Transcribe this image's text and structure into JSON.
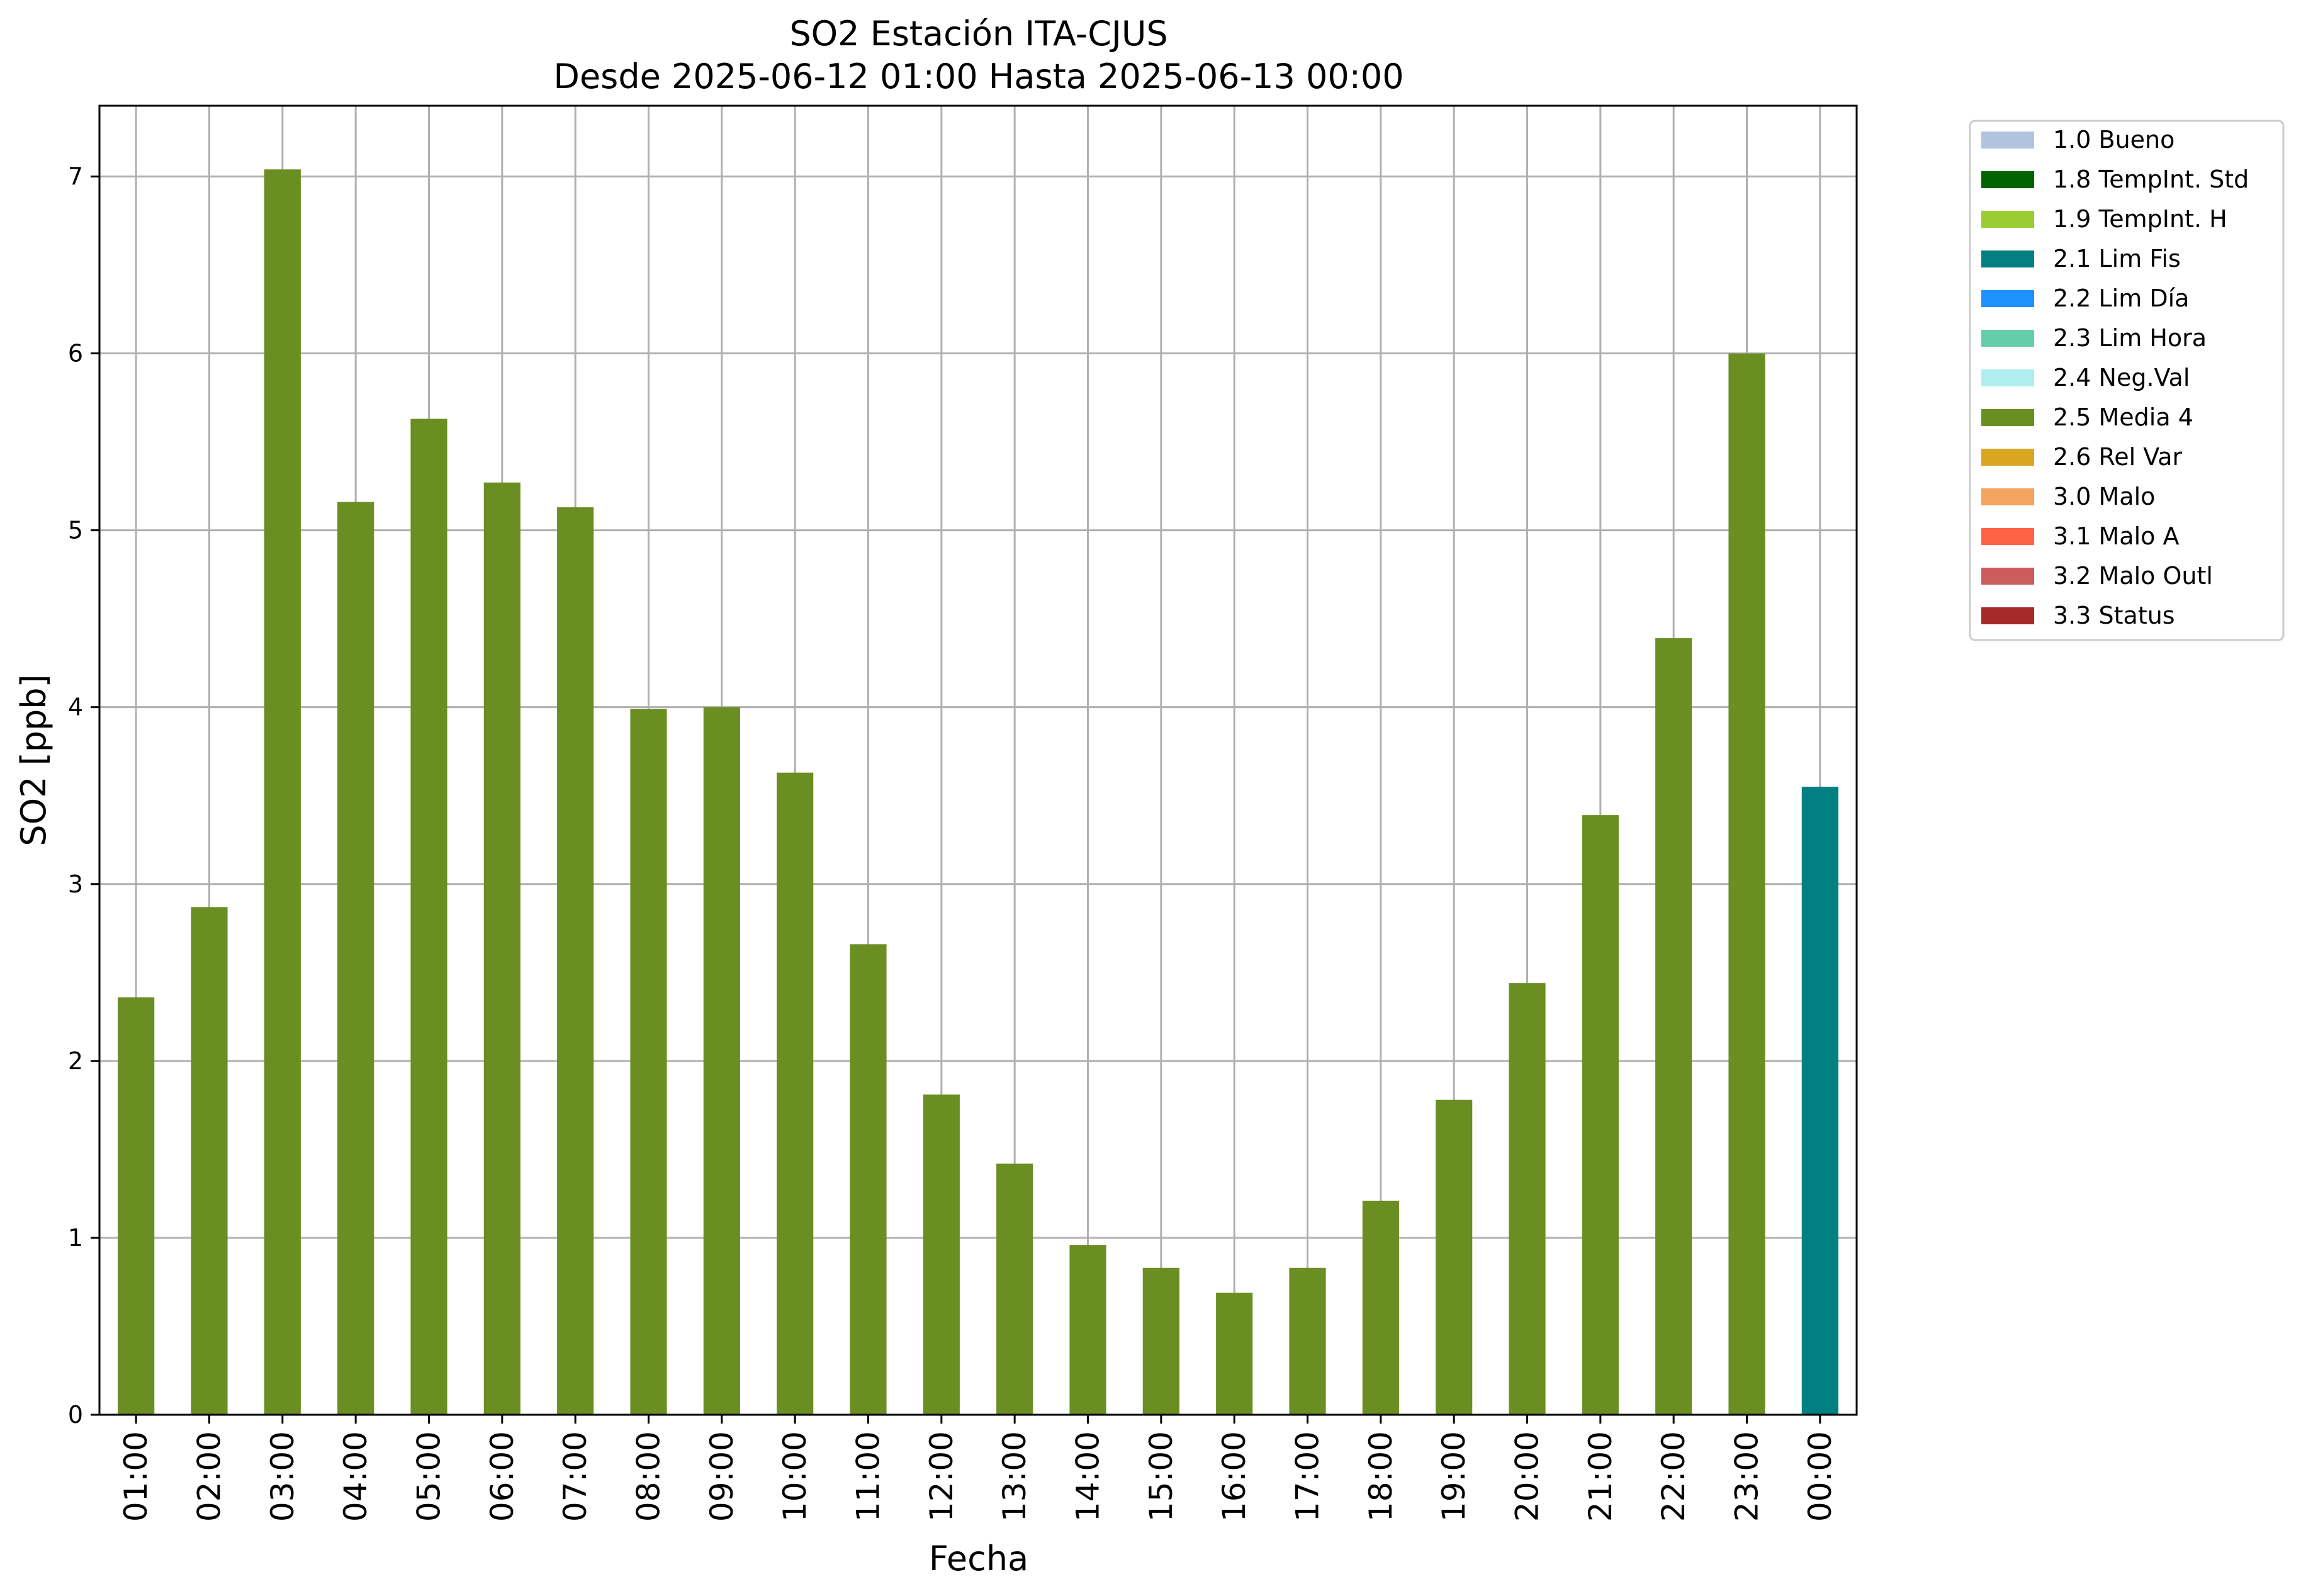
{
  "chart_data": {
    "type": "bar",
    "title": "SO2 Estación ITA-CJUS",
    "subtitle": "Desde 2025-06-12 01:00 Hasta 2025-06-13 00:00",
    "xlabel": "Fecha",
    "ylabel": "SO2 [ppb]",
    "ylim": [
      0,
      7.4
    ],
    "yticks": [
      0,
      1,
      2,
      3,
      4,
      5,
      6,
      7
    ],
    "grid": true,
    "legend_position": "outside-top-right",
    "categories": [
      "01:00",
      "02:00",
      "03:00",
      "04:00",
      "05:00",
      "06:00",
      "07:00",
      "08:00",
      "09:00",
      "10:00",
      "11:00",
      "12:00",
      "13:00",
      "14:00",
      "15:00",
      "16:00",
      "17:00",
      "18:00",
      "19:00",
      "20:00",
      "21:00",
      "22:00",
      "23:00",
      "00:00"
    ],
    "values": [
      2.36,
      2.87,
      7.04,
      5.16,
      5.63,
      5.27,
      5.13,
      3.99,
      4.0,
      3.63,
      2.66,
      1.81,
      1.42,
      0.96,
      0.83,
      0.69,
      0.83,
      1.21,
      1.78,
      2.44,
      3.39,
      4.39,
      6.0,
      3.55
    ],
    "bar_flags": [
      "2.5 Media 4",
      "2.5 Media 4",
      "2.5 Media 4",
      "2.5 Media 4",
      "2.5 Media 4",
      "2.5 Media 4",
      "2.5 Media 4",
      "2.5 Media 4",
      "2.5 Media 4",
      "2.5 Media 4",
      "2.5 Media 4",
      "2.5 Media 4",
      "2.5 Media 4",
      "2.5 Media 4",
      "2.5 Media 4",
      "2.5 Media 4",
      "2.5 Media 4",
      "2.5 Media 4",
      "2.5 Media 4",
      "2.5 Media 4",
      "2.5 Media 4",
      "2.5 Media 4",
      "2.5 Media 4",
      "2.1 Lim Fis"
    ],
    "legend": [
      {
        "label": "1.0 Bueno",
        "color": "#b0c4de"
      },
      {
        "label": "1.8 TempInt. Std",
        "color": "#006400"
      },
      {
        "label": "1.9 TempInt. H",
        "color": "#9acd32"
      },
      {
        "label": "2.1 Lim Fis",
        "color": "#008080"
      },
      {
        "label": "2.2 Lim Día",
        "color": "#1e90ff"
      },
      {
        "label": "2.3 Lim Hora",
        "color": "#66cdaa"
      },
      {
        "label": "2.4 Neg.Val",
        "color": "#afeeee"
      },
      {
        "label": "2.5 Media 4",
        "color": "#6b8e23"
      },
      {
        "label": "2.6 Rel Var",
        "color": "#daa520"
      },
      {
        "label": "3.0 Malo",
        "color": "#f4a460"
      },
      {
        "label": "3.1 Malo A",
        "color": "#ff6347"
      },
      {
        "label": "3.2 Malo Outl",
        "color": "#cd5c5c"
      },
      {
        "label": "3.3 Status",
        "color": "#a52a2a"
      }
    ]
  }
}
